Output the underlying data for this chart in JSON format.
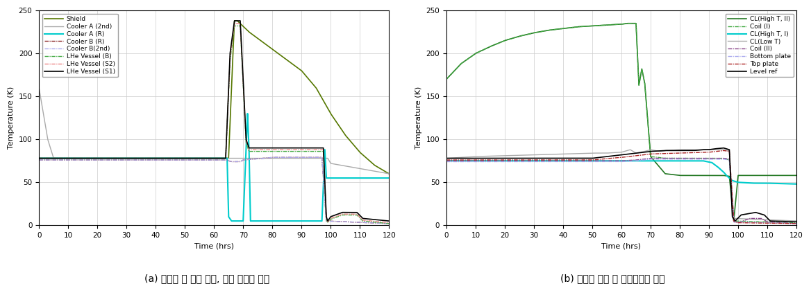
{
  "fig_width": 11.68,
  "fig_height": 4.13,
  "dpi": 100,
  "background_color": "#ffffff",
  "plot_a": {
    "xlabel": "Time (hrs)",
    "ylabel": "Temperature (K)",
    "xlim": [
      0,
      120
    ],
    "ylim": [
      0,
      250
    ],
    "xticks": [
      0,
      10,
      20,
      30,
      40,
      50,
      60,
      70,
      80,
      90,
      100,
      110,
      120
    ],
    "yticks": [
      0,
      50,
      100,
      150,
      200,
      250
    ],
    "caption": "(a) 냉동기 및 헬륨 탱크, 복사 차폐막 온도"
  },
  "plot_b": {
    "xlabel": "Time (hrs)",
    "ylabel": "Temperature (K)",
    "xlim": [
      0,
      120
    ],
    "ylim": [
      0,
      250
    ],
    "xticks": [
      0,
      10,
      20,
      30,
      40,
      50,
      60,
      70,
      80,
      90,
      100,
      110,
      120
    ],
    "yticks": [
      0,
      50,
      100,
      150,
      200,
      250
    ],
    "caption": "(b) 초전도 코일 및 전류도입선 온도"
  },
  "colors": {
    "black": "#000000",
    "pink": "#ee8888",
    "green_dash": "#44aa44",
    "blue_dash": "#aaaaee",
    "dark_red": "#882222",
    "gray": "#aaaaaa",
    "cyan": "#00cccc",
    "olive": "#557700",
    "dark_green": "#227722",
    "purple": "#884488",
    "red_dark": "#aa2222"
  }
}
